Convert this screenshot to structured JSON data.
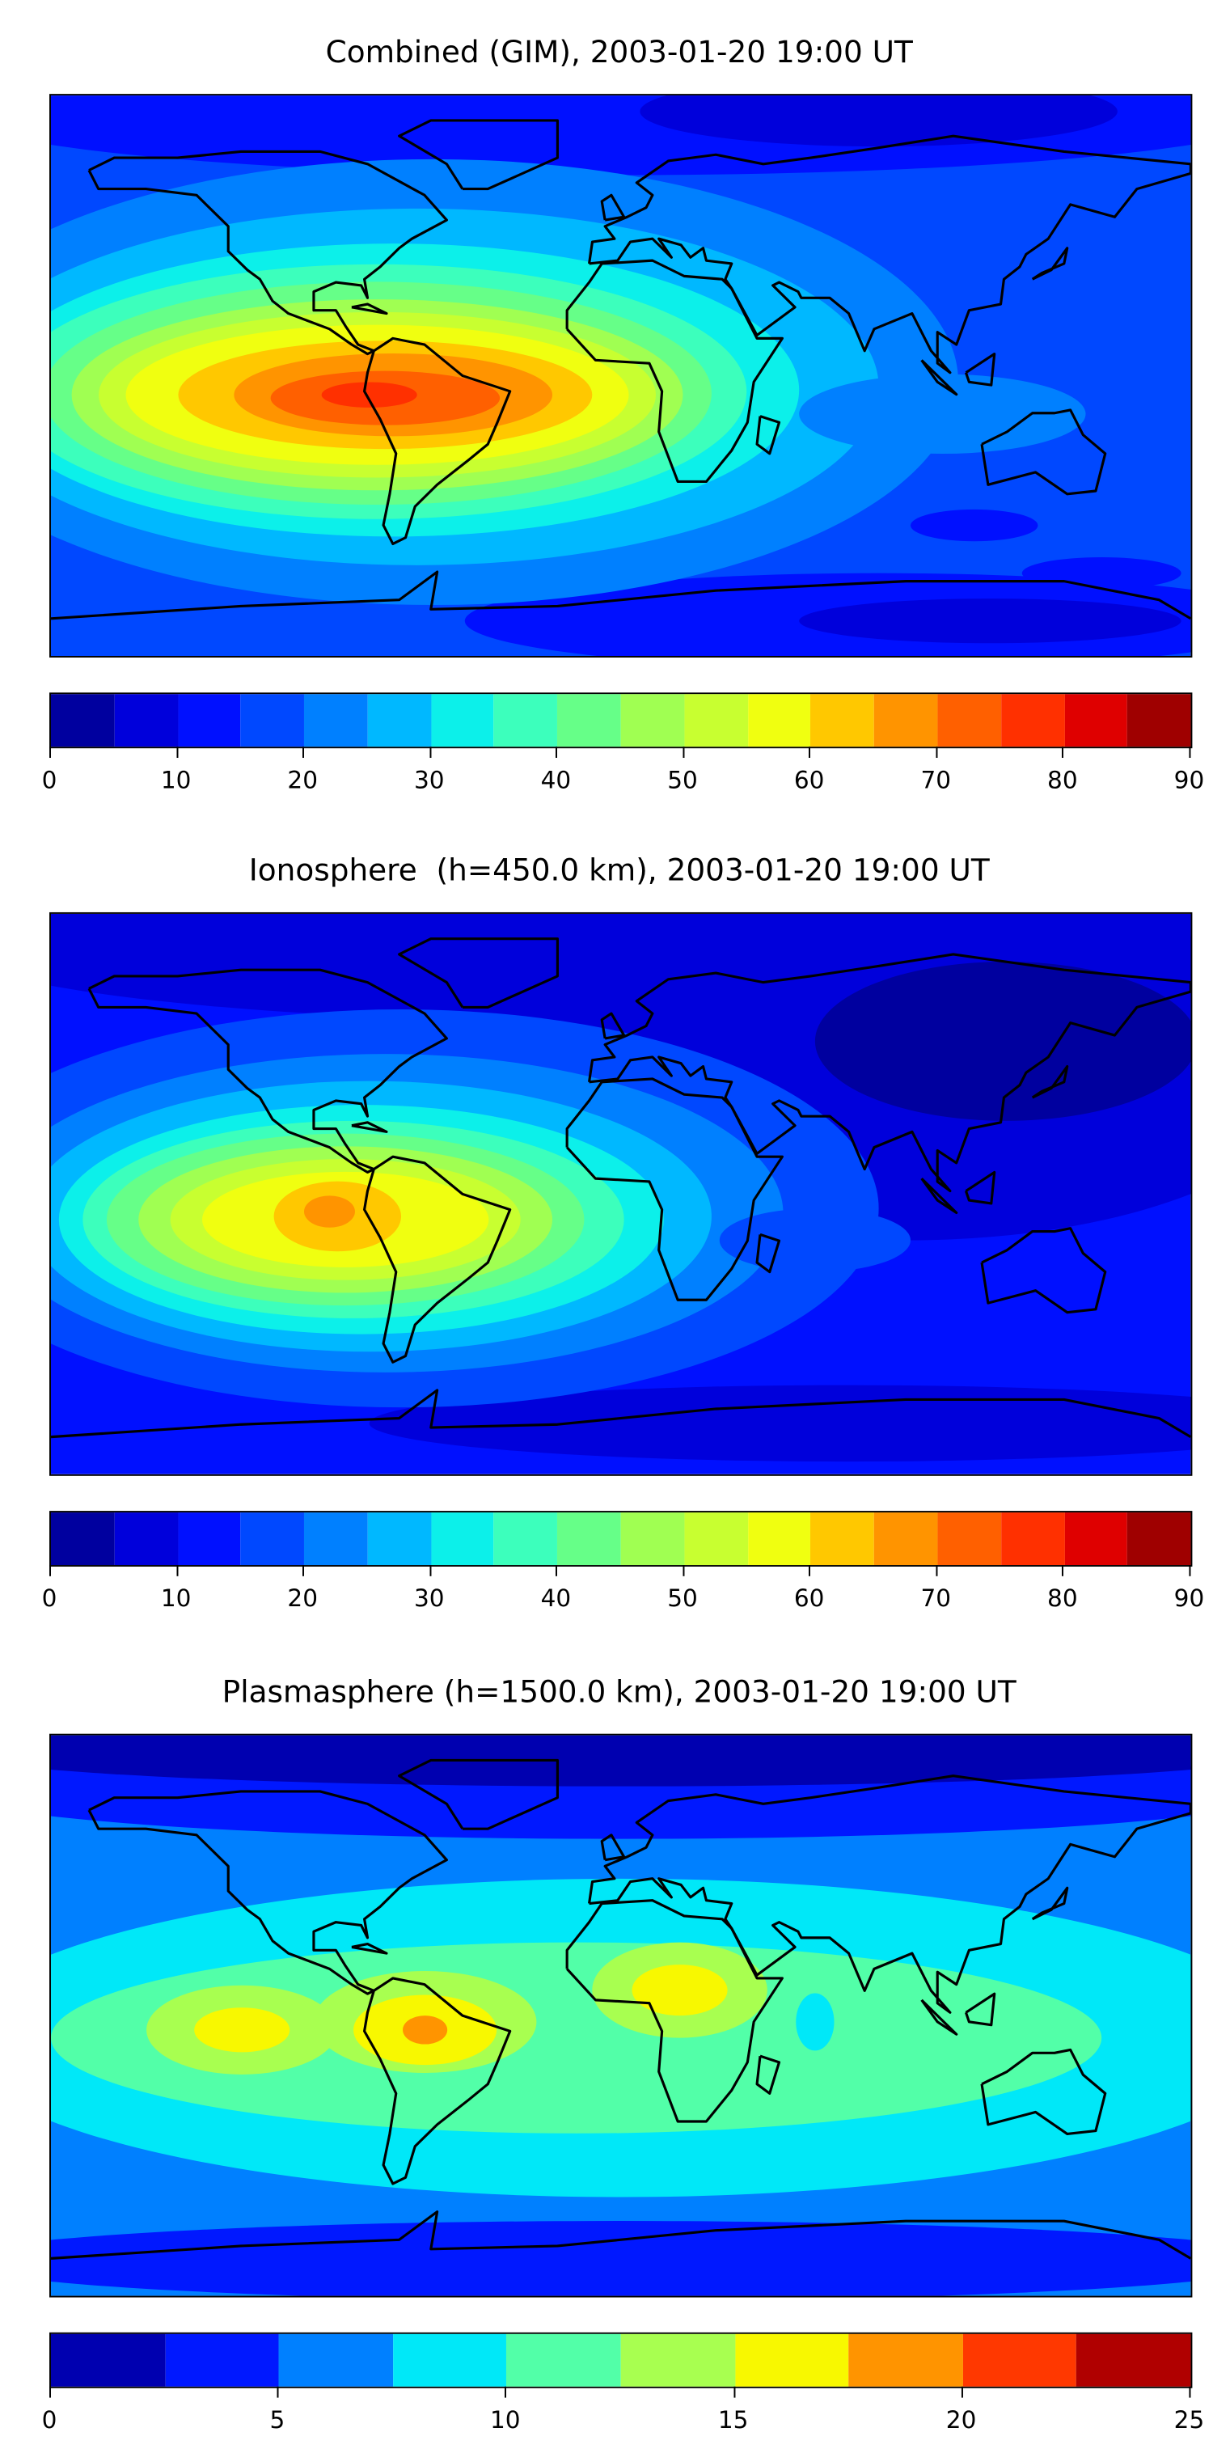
{
  "chart_data": [
    {
      "type": "heatmap",
      "title": "Combined (GIM), 2003-01-20 19:00 UT",
      "colorbar": {
        "range": [
          0,
          90
        ],
        "ticks": [
          "0",
          "10",
          "20",
          "30",
          "40",
          "50",
          "60",
          "70",
          "80",
          "90"
        ],
        "level_step": 5,
        "colors": [
          "#00009f",
          "#0000db",
          "#0010ff",
          "#0048ff",
          "#0080ff",
          "#00b8ff",
          "#0cf0ea",
          "#3cffbc",
          "#66ff88",
          "#a0ff52",
          "#c8ff30",
          "#f0ff10",
          "#ffc800",
          "#ff9400",
          "#ff6000",
          "#ff3000",
          "#df0000",
          "#9f0000"
        ]
      },
      "grid": false,
      "peak_value_approx": 75,
      "peak_location": "tropical South America / eastern Pacific"
    },
    {
      "type": "heatmap",
      "title": "Ionosphere  (h=450.0 km), 2003-01-20 19:00 UT",
      "colorbar": {
        "range": [
          0,
          90
        ],
        "ticks": [
          "0",
          "10",
          "20",
          "30",
          "40",
          "50",
          "60",
          "70",
          "80",
          "90"
        ],
        "level_step": 5,
        "colors": [
          "#00009f",
          "#0000db",
          "#0010ff",
          "#0048ff",
          "#0080ff",
          "#00b8ff",
          "#0cf0ea",
          "#3cffbc",
          "#66ff88",
          "#a0ff52",
          "#c8ff30",
          "#f0ff10",
          "#ffc800",
          "#ff9400",
          "#ff6000",
          "#ff3000",
          "#df0000",
          "#9f0000"
        ]
      },
      "grid": false,
      "peak_value_approx": 65,
      "peak_location": "western South America"
    },
    {
      "type": "heatmap",
      "title": "Plasmasphere (h=1500.0 km), 2003-01-20 19:00 UT",
      "colorbar": {
        "range": [
          0,
          25
        ],
        "ticks": [
          "0",
          "5",
          "10",
          "15",
          "20",
          "25"
        ],
        "level_step": 2.5,
        "colors": [
          "#0000b0",
          "#0018ff",
          "#0080ff",
          "#00e8f8",
          "#52ffa8",
          "#a8ff50",
          "#f8f800",
          "#ff9400",
          "#ff3800",
          "#b00000"
        ]
      },
      "grid": false,
      "peak_value_approx": 18,
      "peak_location": "central South America"
    }
  ]
}
